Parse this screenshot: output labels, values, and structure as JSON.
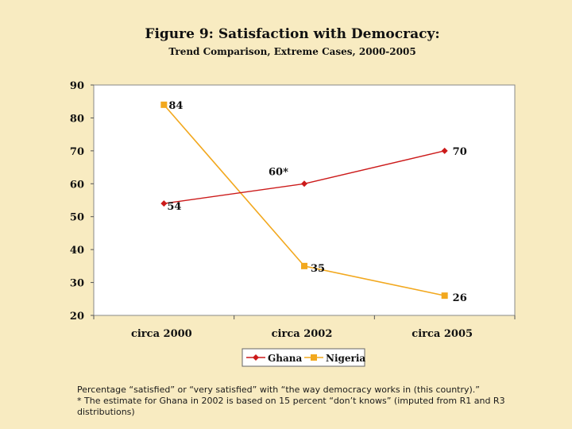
{
  "chart_data": {
    "type": "line",
    "title": "Figure 9: Satisfaction with Democracy:",
    "subtitle": "Trend Comparison, Extreme Cases, 2000-2005",
    "categories": [
      "circa 2000",
      "circa 2002",
      "circa 2005"
    ],
    "series": [
      {
        "name": "Ghana",
        "values": [
          54,
          60,
          70
        ],
        "labels": [
          "54",
          "60*",
          "70"
        ],
        "color": "#cc1a1a",
        "marker": "diamond"
      },
      {
        "name": "Nigeria",
        "values": [
          84,
          35,
          26
        ],
        "labels": [
          "84",
          "35",
          "26"
        ],
        "color": "#f2a81e",
        "marker": "square"
      }
    ],
    "ylim": [
      20,
      90
    ],
    "yticks": [
      20,
      30,
      40,
      50,
      60,
      70,
      80,
      90
    ],
    "grid": false,
    "legend": "bottom-center"
  },
  "footnote": {
    "line1": "Percentage “satisfied” or “very satisfied”  with  “the way democracy works in (this country).”",
    "line2": "* The estimate for Ghana in 2002 is based on 15 percent “don’t knows” (imputed from R1 and R3 distributions)"
  }
}
